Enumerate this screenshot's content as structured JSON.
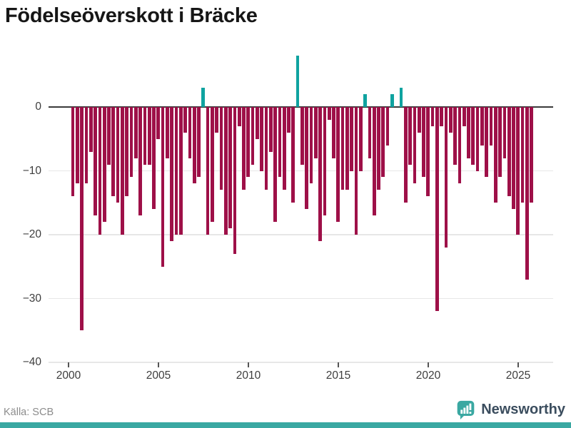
{
  "chart_data": {
    "type": "bar",
    "title": "Födelseöverskott i Bräcke",
    "xlabel": "",
    "ylabel": "",
    "x_start": "2000Q1",
    "x_end": "2025Q3",
    "frequency": "quarterly",
    "x_tick_years": [
      2000,
      2005,
      2010,
      2015,
      2020,
      2025
    ],
    "x_tick_labels": [
      "2000",
      "2005",
      "2010",
      "2015",
      "2020",
      "2025"
    ],
    "y_tick_values": [
      0,
      -10,
      -20,
      -30,
      -40
    ],
    "y_tick_labels": [
      "0",
      "−10",
      "−20",
      "−30",
      "−40"
    ],
    "ylim": [
      -40,
      8
    ],
    "grid": true,
    "legend": false,
    "values": [
      -14,
      -12,
      -35,
      -12,
      -7,
      -17,
      -20,
      -18,
      -9,
      -14,
      -15,
      -20,
      -14,
      -11,
      -8,
      -17,
      -9,
      -9,
      -16,
      -5,
      -25,
      -8,
      -21,
      -20,
      -20,
      -4,
      -8,
      -12,
      -11,
      3,
      -20,
      -18,
      -4,
      -13,
      -20,
      -19,
      -23,
      -3,
      -13,
      -11,
      -9,
      -5,
      -10,
      -13,
      -7,
      -18,
      -11,
      -13,
      -4,
      -15,
      8,
      -9,
      -16,
      -12,
      -8,
      -21,
      -17,
      -2,
      -8,
      -18,
      -13,
      -13,
      -10,
      -20,
      -10,
      2,
      -8,
      -17,
      -13,
      -11,
      -6,
      2,
      0,
      3,
      -15,
      -9,
      -12,
      -4,
      -11,
      -14,
      -3,
      -32,
      -3,
      -22,
      -4,
      -9,
      -12,
      -3,
      -8,
      -9,
      -10,
      -6,
      -11,
      -6,
      -15,
      -11,
      -8,
      -14,
      -16,
      -20,
      -15,
      -27,
      -15
    ]
  },
  "footer": {
    "source": "Källa: SCB",
    "brand": "Newsworthy"
  },
  "colors": {
    "negative_bar": "#9e1048",
    "positive_bar": "#0fa3a0",
    "accent_strip": "#3aa8a2",
    "brand_text": "#3b4d5e",
    "grid": "#e7e7e7",
    "zero_line": "#3a3a3a",
    "tick_text": "#3d3d3d",
    "title_text": "#161616",
    "source_text": "#8c8c8c"
  }
}
